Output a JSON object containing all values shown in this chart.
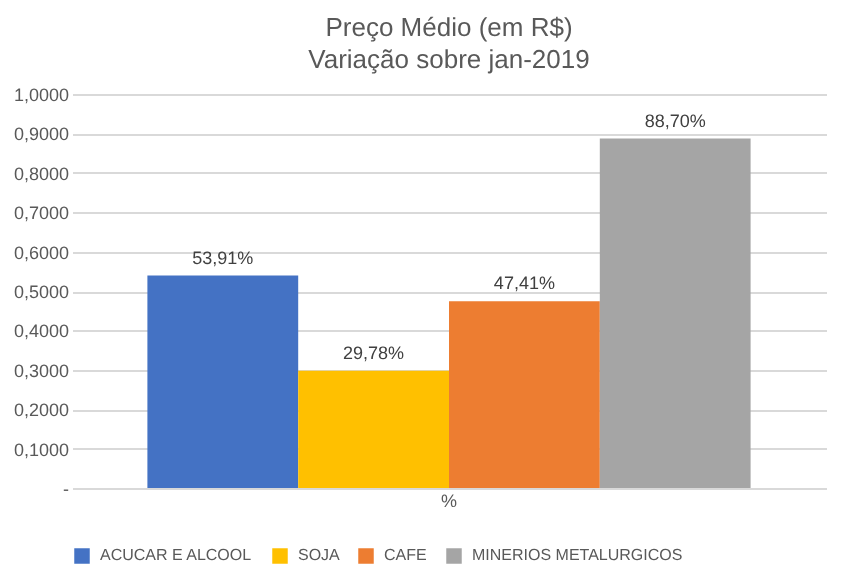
{
  "chart_data": {
    "type": "bar",
    "title": "Preço Médio (em R$)",
    "subtitle": "Variação sobre jan-2019",
    "categories": [
      "%"
    ],
    "series": [
      {
        "name": "ACUCAR E ALCOOL",
        "color": "#4472c4",
        "values": [
          0.5391
        ],
        "value_labels": [
          "53,91%"
        ]
      },
      {
        "name": "SOJA",
        "color": "#ffc000",
        "values": [
          0.2978
        ],
        "value_labels": [
          "29,78%"
        ]
      },
      {
        "name": "CAFE",
        "color": "#ed7d31",
        "values": [
          0.4741
        ],
        "value_labels": [
          "47,41%"
        ]
      },
      {
        "name": "MINERIOS METALURGICOS",
        "color": "#a5a5a5",
        "values": [
          0.887
        ],
        "value_labels": [
          "88,70%"
        ]
      }
    ],
    "ylim": [
      0,
      1
    ],
    "yticks": [
      {
        "value": 0,
        "label": "-"
      },
      {
        "value": 0.1,
        "label": "0,1000"
      },
      {
        "value": 0.2,
        "label": "0,2000"
      },
      {
        "value": 0.3,
        "label": "0,3000"
      },
      {
        "value": 0.4,
        "label": "0,4000"
      },
      {
        "value": 0.5,
        "label": "0,5000"
      },
      {
        "value": 0.6,
        "label": "0,6000"
      },
      {
        "value": 0.7,
        "label": "0,7000"
      },
      {
        "value": 0.8,
        "label": "0,8000"
      },
      {
        "value": 0.9,
        "label": "0,9000"
      },
      {
        "value": 1,
        "label": "1,0000"
      }
    ],
    "grid": "y",
    "legend": "bottom"
  }
}
